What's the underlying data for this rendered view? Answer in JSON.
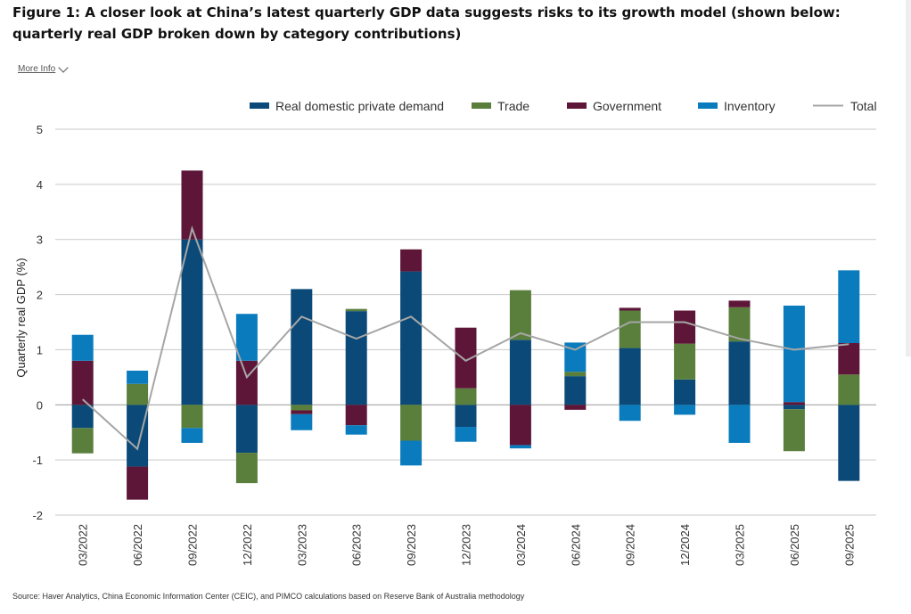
{
  "title": "Figure 1: A closer look at China’s latest quarterly GDP data suggests risks to its growth model (shown below: quarterly real GDP broken down by category contributions)",
  "more_info": "More Info",
  "source": "Source: Haver Analytics, China Economic Information Center (CEIC), and PIMCO calculations based on Reserve Bank of Australia methodology",
  "colors": {
    "Real domestic private demand": "#0b4a78",
    "Trade": "#5a7f3c",
    "Government": "#5e1638",
    "Inventory": "#0a7bbd",
    "Total": "#a6a6a6"
  },
  "chart_data": {
    "type": "bar",
    "stacked": true,
    "ylabel": "Quarterly real GDP (%)",
    "ylim": [
      -2,
      5
    ],
    "yticks": [
      -2,
      -1,
      0,
      1,
      2,
      3,
      4,
      5
    ],
    "grid": true,
    "legend_position": "top",
    "categories": [
      "03/2022",
      "06/2022",
      "09/2022",
      "12/2022",
      "03/2023",
      "06/2023",
      "09/2023",
      "12/2023",
      "03/2024",
      "06/2024",
      "09/2024",
      "12/2024",
      "03/2025",
      "06/2025",
      "09/2025"
    ],
    "series": [
      {
        "name": "Real domestic private demand",
        "values": [
          -0.42,
          -1.12,
          3.0,
          -0.87,
          2.1,
          1.7,
          2.42,
          -0.4,
          1.18,
          0.52,
          1.03,
          0.46,
          1.15,
          -0.08,
          -1.38
        ]
      },
      {
        "name": "Trade",
        "values": [
          -0.46,
          0.38,
          -0.42,
          -0.55,
          -0.1,
          0.04,
          -0.65,
          0.3,
          0.9,
          0.08,
          0.68,
          0.65,
          0.62,
          -0.76,
          0.55
        ]
      },
      {
        "name": "Government",
        "values": [
          0.8,
          -0.6,
          1.25,
          0.8,
          -0.07,
          -0.37,
          0.4,
          1.1,
          -0.73,
          -0.09,
          0.05,
          0.6,
          0.12,
          0.05,
          0.57
        ]
      },
      {
        "name": "Inventory",
        "values": [
          0.47,
          0.24,
          -0.27,
          0.85,
          -0.29,
          -0.17,
          -0.45,
          -0.27,
          -0.06,
          0.53,
          -0.29,
          -0.18,
          -0.69,
          1.75,
          1.32
        ]
      },
      {
        "name": "Total",
        "type": "line",
        "values": [
          0.1,
          -0.8,
          3.2,
          0.5,
          1.6,
          1.2,
          1.6,
          0.8,
          1.3,
          1.0,
          1.5,
          1.5,
          1.2,
          1.0,
          1.1
        ]
      }
    ]
  }
}
